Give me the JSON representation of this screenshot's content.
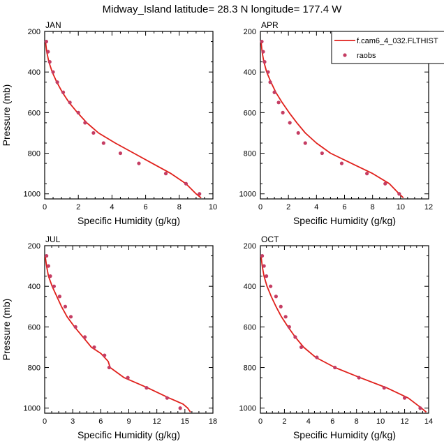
{
  "figure": {
    "title": "Midway_Island  latitude= 28.3 N longitude= 177.4 W"
  },
  "legend": {
    "model_label": "f.cam6_4_032.FLTHIST",
    "obs_label": "raobs",
    "placement": "top-right of APR panel"
  },
  "colors": {
    "model_line": "#e0201b",
    "obs_marker": "#c53d63",
    "axis": "#000000"
  },
  "chart_data": [
    {
      "type": "line",
      "panel": "JAN",
      "title": "JAN",
      "xlabel": "Specific Humidity (g/kg)",
      "ylabel": "Pressure (mb)",
      "xlim": [
        0,
        10
      ],
      "ylim": [
        200,
        1025
      ],
      "y_inverted": true,
      "xticks": [
        0,
        2,
        4,
        6,
        8,
        10
      ],
      "yticks": [
        200,
        400,
        600,
        800,
        1000
      ],
      "series": [
        {
          "name": "f.cam6_4_032.FLTHIST",
          "style": "line",
          "x": [
            0.05,
            0.12,
            0.25,
            0.45,
            0.72,
            1.05,
            1.45,
            1.95,
            2.5,
            3.2,
            4.2,
            5.3,
            6.4,
            7.5,
            8.4,
            9.0,
            9.3
          ],
          "y": [
            250,
            300,
            350,
            400,
            450,
            500,
            550,
            600,
            650,
            700,
            750,
            800,
            850,
            900,
            950,
            1000,
            1020
          ]
        },
        {
          "name": "raobs",
          "style": "markers",
          "x": [
            0.1,
            0.2,
            0.3,
            0.5,
            0.75,
            1.1,
            1.5,
            2.0,
            2.4,
            2.9,
            3.5,
            4.5,
            5.6,
            7.2,
            8.4,
            9.2
          ],
          "y": [
            250,
            300,
            350,
            400,
            450,
            500,
            550,
            600,
            650,
            700,
            750,
            800,
            850,
            900,
            950,
            1000
          ]
        }
      ]
    },
    {
      "type": "line",
      "panel": "APR",
      "title": "APR",
      "xlabel": "Specific Humidity (g/kg)",
      "ylabel": "",
      "xlim": [
        0,
        12
      ],
      "ylim": [
        200,
        1025
      ],
      "y_inverted": true,
      "xticks": [
        0,
        2,
        4,
        6,
        8,
        10,
        12
      ],
      "yticks": [
        200,
        400,
        600,
        800,
        1000
      ],
      "series": [
        {
          "name": "f.cam6_4_032.FLTHIST",
          "style": "line",
          "x": [
            0.05,
            0.12,
            0.25,
            0.45,
            0.75,
            1.1,
            1.55,
            2.05,
            2.6,
            3.2,
            4.0,
            5.0,
            6.5,
            8.0,
            9.2,
            9.9,
            10.2
          ],
          "y": [
            250,
            300,
            350,
            400,
            450,
            500,
            550,
            600,
            650,
            700,
            750,
            800,
            850,
            900,
            950,
            1000,
            1020
          ]
        },
        {
          "name": "raobs",
          "style": "markers",
          "x": [
            0.1,
            0.2,
            0.3,
            0.55,
            0.7,
            1.0,
            1.3,
            1.6,
            2.1,
            2.7,
            3.2,
            4.4,
            5.8,
            7.6,
            8.9,
            9.9
          ],
          "y": [
            250,
            300,
            350,
            400,
            450,
            500,
            550,
            600,
            650,
            700,
            750,
            800,
            850,
            900,
            950,
            1000
          ]
        }
      ]
    },
    {
      "type": "line",
      "panel": "JUL",
      "title": "JUL",
      "xlabel": "Specific Humidity (g/kg)",
      "ylabel": "Pressure (mb)",
      "xlim": [
        0,
        18
      ],
      "ylim": [
        200,
        1025
      ],
      "y_inverted": true,
      "xticks": [
        0,
        3,
        6,
        9,
        12,
        15,
        18
      ],
      "yticks": [
        200,
        400,
        600,
        800,
        1000
      ],
      "series": [
        {
          "name": "f.cam6_4_032.FLTHIST",
          "style": "line",
          "x": [
            0.05,
            0.2,
            0.4,
            0.8,
            1.3,
            1.8,
            2.4,
            3.2,
            4.1,
            5.0,
            6.0,
            6.8,
            7.0,
            8.5,
            11.0,
            13.3,
            14.8,
            15.3,
            15.6
          ],
          "y": [
            250,
            300,
            350,
            400,
            450,
            500,
            550,
            600,
            650,
            700,
            730,
            770,
            800,
            850,
            900,
            950,
            980,
            1000,
            1020
          ]
        },
        {
          "name": "raobs",
          "style": "markers",
          "x": [
            0.2,
            0.4,
            0.6,
            1.0,
            1.6,
            2.2,
            2.8,
            3.3,
            4.3,
            5.3,
            6.4,
            6.9,
            8.9,
            10.9,
            13.1,
            14.5
          ],
          "y": [
            250,
            300,
            350,
            400,
            450,
            500,
            550,
            600,
            650,
            700,
            740,
            800,
            850,
            900,
            950,
            1000
          ]
        }
      ]
    },
    {
      "type": "line",
      "panel": "OCT",
      "title": "OCT",
      "xlabel": "Specific Humidity (g/kg)",
      "ylabel": "",
      "xlim": [
        0,
        14
      ],
      "ylim": [
        200,
        1025
      ],
      "y_inverted": true,
      "xticks": [
        0,
        2,
        4,
        6,
        8,
        10,
        12,
        14
      ],
      "yticks": [
        200,
        400,
        600,
        800,
        1000
      ],
      "series": [
        {
          "name": "f.cam6_4_032.FLTHIST",
          "style": "line",
          "x": [
            0.05,
            0.15,
            0.3,
            0.55,
            0.9,
            1.3,
            1.75,
            2.3,
            2.9,
            3.6,
            4.6,
            6.2,
            8.3,
            10.5,
            12.3,
            13.4,
            13.8
          ],
          "y": [
            250,
            300,
            350,
            400,
            450,
            500,
            550,
            600,
            650,
            700,
            750,
            800,
            850,
            900,
            950,
            1000,
            1020
          ]
        },
        {
          "name": "raobs",
          "style": "markers",
          "x": [
            0.15,
            0.3,
            0.5,
            0.85,
            1.3,
            1.7,
            2.1,
            2.4,
            2.9,
            3.4,
            4.7,
            6.2,
            8.2,
            10.3,
            12.0,
            13.3
          ],
          "y": [
            250,
            300,
            350,
            400,
            450,
            500,
            550,
            600,
            650,
            700,
            750,
            800,
            850,
            900,
            950,
            1000
          ]
        }
      ]
    }
  ]
}
